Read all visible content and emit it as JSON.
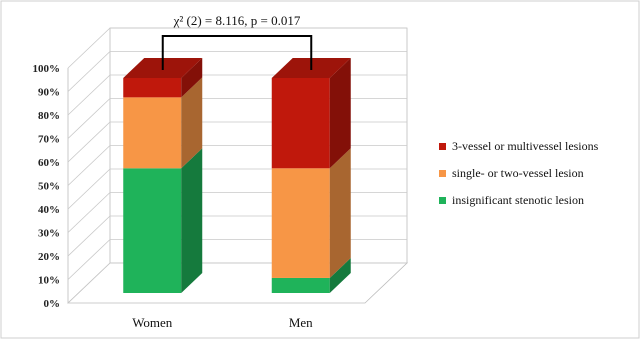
{
  "chart_data": {
    "type": "bar",
    "stacked": true,
    "three_d": true,
    "categories": [
      "Women",
      "Men"
    ],
    "series": [
      {
        "name": "insignificant stenotic lesion",
        "values": [
          58,
          7
        ],
        "color": "#1fb35a"
      },
      {
        "name": "single- or two-vessel lesion",
        "values": [
          33,
          51
        ],
        "color": "#f79646"
      },
      {
        "name": "3-vessel or multivessel lesions",
        "values": [
          9,
          42
        ],
        "color": "#c0180c"
      }
    ],
    "yticks": [
      "0%",
      "10%",
      "20%",
      "30%",
      "40%",
      "50%",
      "60%",
      "70%",
      "80%",
      "90%",
      "100%"
    ],
    "ylim": [
      0,
      100
    ],
    "annotation": "χ² (2) = 8.116, p = 0.017",
    "legend_position": "right",
    "grid": true
  }
}
